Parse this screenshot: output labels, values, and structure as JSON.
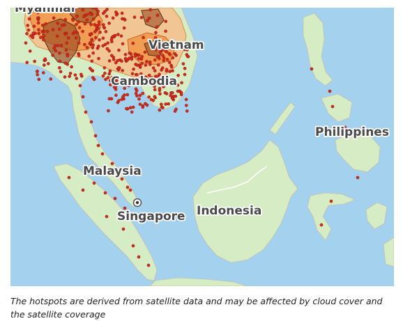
{
  "map": {
    "labels": {
      "myanmar": "Myanmar",
      "vietnam": "Vietnam",
      "cambodia": "Cambodia",
      "malaysia": "Malaysia",
      "singapore": "Singapore",
      "indonesia": "Indonesia",
      "philippines": "Philippines"
    },
    "colors": {
      "sea": "#a4d1ee",
      "land": "#d6ecc4",
      "hotspot": "#d42a1b",
      "haze_light": "#f7c08c",
      "haze_medium": "#f08f3e",
      "haze_dark": "#9a4a22"
    },
    "legend_icons": [
      "hotspot-dot-icon",
      "capital-marker-icon"
    ]
  },
  "caption": {
    "text": "The hotspots are derived from satellite data and may be affected by cloud cover and the satellite coverage"
  }
}
